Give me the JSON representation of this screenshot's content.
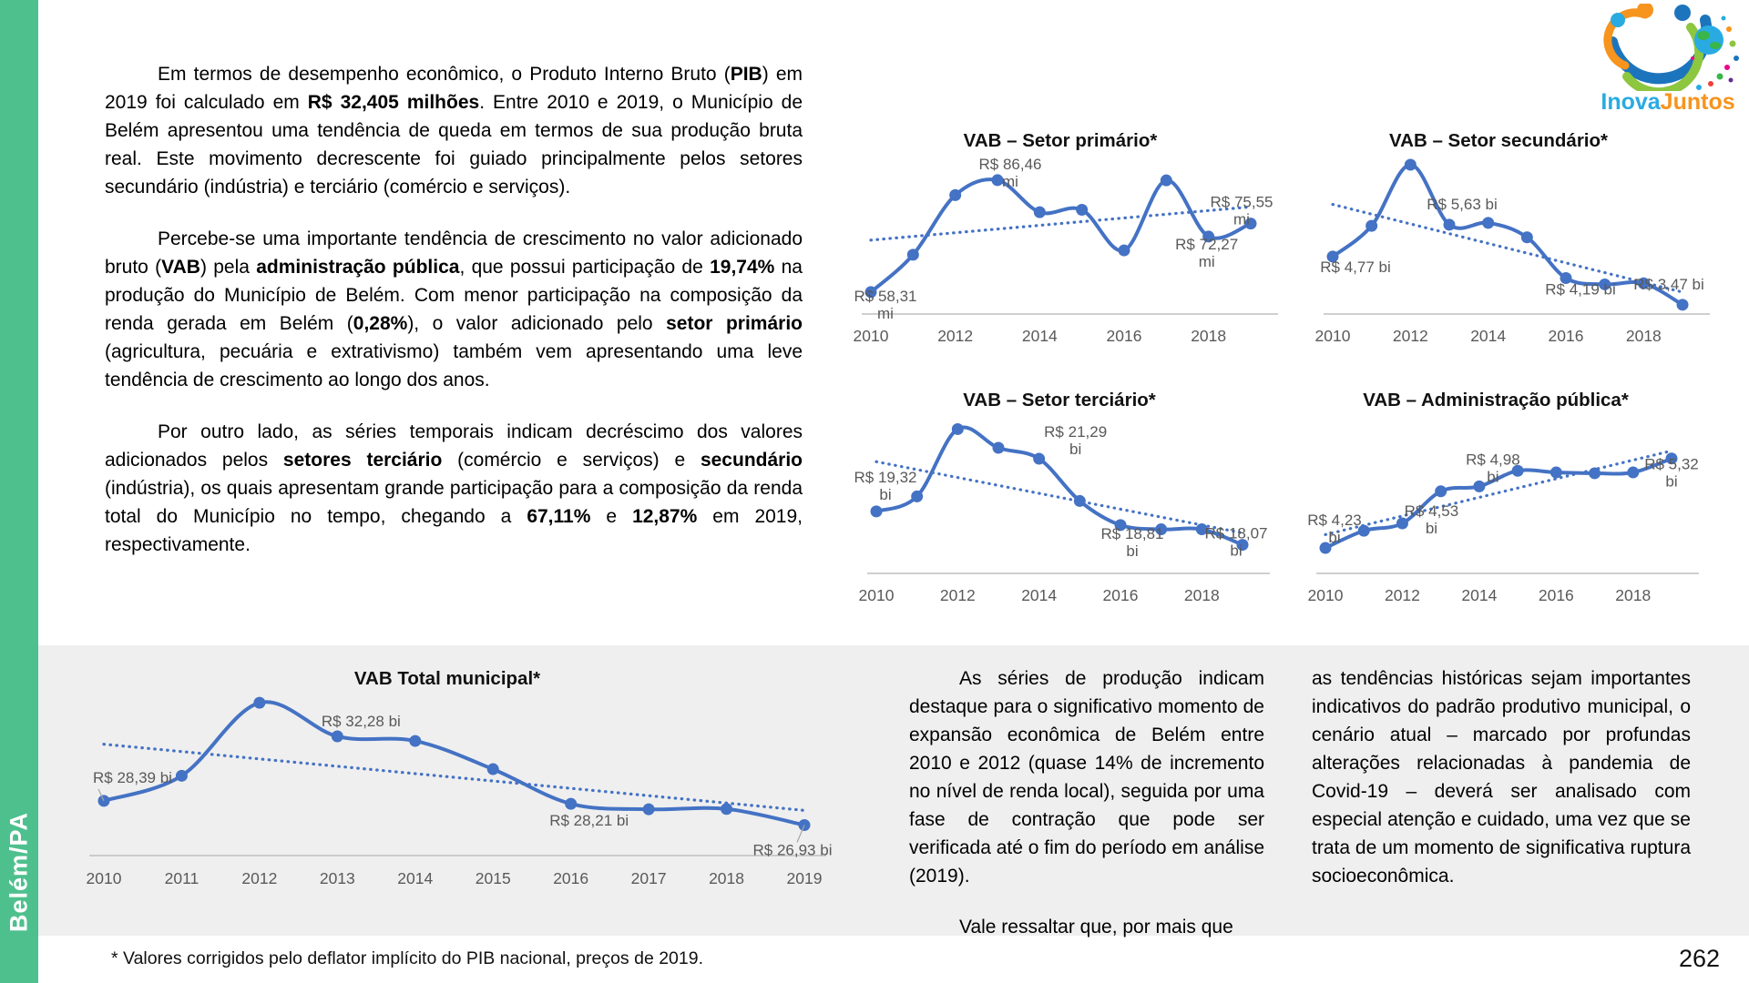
{
  "page": {
    "footnote": "* Valores corrigidos pelo deflator implícito do PIB nacional, preços de 2019.",
    "number": "262"
  },
  "sidebar": {
    "label": "Belém/PA",
    "color": "#4EC08E"
  },
  "logo": {
    "inova": "Inova",
    "juntos": "Juntos",
    "inova_color": "#29ABE2",
    "juntos_color": "#F7941D"
  },
  "article": {
    "paragraphs": [
      {
        "segments": [
          {
            "t": "Em termos de desempenho econômico, o Produto Interno Bruto ("
          },
          {
            "t": "PIB",
            "b": true
          },
          {
            "t": ") em 2019 foi calculado em "
          },
          {
            "t": "R$ 32,405 milhões",
            "b": true
          },
          {
            "t": ". Entre 2010 e 2019, o Município de Belém apresentou uma tendência de queda em termos de sua produção bruta real. Este movimento decrescente foi guiado principalmente pelos setores secundário (indústria) e terciário (comércio e serviços)."
          }
        ]
      },
      {
        "segments": [
          {
            "t": "Percebe-se uma importante tendência de crescimento no valor adicionado bruto ("
          },
          {
            "t": "VAB",
            "b": true
          },
          {
            "t": ") pela "
          },
          {
            "t": "administração pública",
            "b": true
          },
          {
            "t": ", que possui participação de "
          },
          {
            "t": "19,74%",
            "b": true
          },
          {
            "t": " na produção do Município de Belém. Com menor participação na composição da renda gerada em Belém ("
          },
          {
            "t": "0,28%",
            "b": true
          },
          {
            "t": "), o valor adicionado pelo "
          },
          {
            "t": "setor primário",
            "b": true
          },
          {
            "t": " (agricultura, pecuária e extrativismo) também vem apresentando uma leve tendência de crescimento ao longo dos anos."
          }
        ]
      },
      {
        "segments": [
          {
            "t": "Por outro lado, as séries temporais indicam decréscimo dos valores adicionados pelos "
          },
          {
            "t": "setores terciário",
            "b": true
          },
          {
            "t": " (comércio e serviços) e "
          },
          {
            "t": "secundário",
            "b": true
          },
          {
            "t": " (indústria), os quais apresentam grande participação para a composição da renda total do Município no tempo, chegando a "
          },
          {
            "t": "67,11%",
            "b": true
          },
          {
            "t": " e "
          },
          {
            "t": "12,87%",
            "b": true
          },
          {
            "t": " em 2019, respectivamente."
          }
        ]
      }
    ]
  },
  "bottom_columns": [
    {
      "paragraphs": [
        {
          "segments": [
            {
              "t": "As séries de produção indicam destaque para o significativo momento de expansão econômica de Belém entre 2010 e 2012 (quase 14% de incremento no nível de renda local), seguida por uma fase de contração que pode ser verificada até o fim do período em análise (2019)."
            }
          ]
        },
        {
          "segments": [
            {
              "t": "Vale ressaltar que, por mais que"
            }
          ]
        }
      ]
    },
    {
      "paragraphs": [
        {
          "indent": false,
          "segments": [
            {
              "t": "as tendências históricas sejam importantes indicativos do padrão produtivo municipal, o cenário atual – marcado por profundas alterações relacionadas à pandemia de Covid-19 – deverá ser analisado com especial atenção e cuidado, uma vez que se trata de um momento de significativa ruptura socioeconômica."
            }
          ]
        }
      ]
    }
  ],
  "chart_data": [
    {
      "id": "vab-primario",
      "type": "line",
      "title": "VAB – Setor primário*",
      "unit": "mi",
      "x": [
        2010,
        2011,
        2012,
        2013,
        2014,
        2015,
        2016,
        2017,
        2018,
        2019
      ],
      "values": [
        58.31,
        67.7,
        82.7,
        86.46,
        78.4,
        79.0,
        68.8,
        86.4,
        72.27,
        75.55
      ],
      "labeled_points": [
        {
          "index": 0,
          "lines": [
            "R$ 58,31",
            "mi"
          ]
        },
        {
          "index": 3,
          "lines": [
            "R$ 86,46",
            "mi"
          ]
        },
        {
          "index": 8,
          "lines": [
            "R$ 72,27",
            "mi"
          ]
        },
        {
          "index": 9,
          "lines": [
            "R$ 75,55",
            "mi"
          ]
        }
      ],
      "x_ticks_shown": [
        "2010",
        "2012",
        "2014",
        "2016",
        "2018"
      ],
      "ylim": [
        52.8,
        92.85
      ],
      "trendline": true,
      "line_color": "#4472C4"
    },
    {
      "id": "vab-secundario",
      "type": "line",
      "title": "VAB – Setor secundário*",
      "unit": "bi",
      "x": [
        2010,
        2011,
        2012,
        2013,
        2014,
        2015,
        2016,
        2017,
        2018,
        2019
      ],
      "values": [
        4.77,
        5.6,
        7.25,
        5.63,
        5.68,
        5.29,
        4.19,
        4.02,
        4.05,
        3.47
      ],
      "labeled_points": [
        {
          "index": 0,
          "lines": [
            "R$ 4,77 bi"
          ]
        },
        {
          "index": 3,
          "lines": [
            "R$ 5,63 bi"
          ]
        },
        {
          "index": 6,
          "lines": [
            "R$ 4,19 bi"
          ]
        },
        {
          "index": 9,
          "lines": [
            "R$ 3,47 bi"
          ]
        }
      ],
      "x_ticks_shown": [
        "2010",
        "2012",
        "2014",
        "2016",
        "2018"
      ],
      "ylim": [
        3.22,
        7.52
      ],
      "trendline": true,
      "line_color": "#4472C4"
    },
    {
      "id": "vab-terciario",
      "type": "line",
      "title": "VAB – Setor terciário*",
      "unit": "bi",
      "x": [
        2010,
        2011,
        2012,
        2013,
        2014,
        2015,
        2016,
        2017,
        2018,
        2019
      ],
      "values": [
        19.32,
        19.88,
        22.4,
        21.7,
        21.29,
        19.71,
        18.81,
        18.65,
        18.65,
        18.07
      ],
      "labeled_points": [
        {
          "index": 0,
          "lines": [
            "R$ 19,32",
            "bi"
          ]
        },
        {
          "index": 4,
          "lines": [
            "R$ 21,29",
            "bi"
          ]
        },
        {
          "index": 6,
          "lines": [
            "R$ 18,81",
            "bi"
          ]
        },
        {
          "index": 9,
          "lines": [
            "R$ 18,07",
            "bi"
          ]
        }
      ],
      "x_ticks_shown": [
        "2010",
        "2012",
        "2014",
        "2016",
        "2018"
      ],
      "ylim": [
        17.0,
        22.96
      ],
      "trendline": true,
      "line_color": "#4472C4"
    },
    {
      "id": "vab-admin",
      "type": "line",
      "title": "VAB – Administração pública*",
      "unit": "bi",
      "x": [
        2010,
        2011,
        2012,
        2013,
        2014,
        2015,
        2016,
        2017,
        2018,
        2019
      ],
      "values": [
        4.23,
        4.44,
        4.53,
        4.92,
        4.98,
        5.17,
        5.15,
        5.14,
        5.15,
        5.32
      ],
      "labeled_points": [
        {
          "index": 0,
          "lines": [
            "R$ 4,23",
            "bi"
          ]
        },
        {
          "index": 2,
          "lines": [
            "R$ 4,53",
            "bi"
          ]
        },
        {
          "index": 4,
          "lines": [
            "R$ 4,98",
            "bi"
          ]
        },
        {
          "index": 9,
          "lines": [
            "R$ 5,32",
            "bi"
          ]
        }
      ],
      "x_ticks_shown": [
        "2010",
        "2012",
        "2014",
        "2016",
        "2018"
      ],
      "ylim": [
        3.92,
        5.86
      ],
      "trendline": true,
      "line_color": "#4472C4"
    },
    {
      "id": "vab-total",
      "type": "line",
      "title": "VAB Total municipal*",
      "unit": "bi",
      "x": [
        2010,
        2011,
        2012,
        2013,
        2014,
        2015,
        2016,
        2017,
        2018,
        2019
      ],
      "values": [
        28.39,
        29.9,
        34.3,
        32.28,
        32.0,
        30.3,
        28.21,
        27.88,
        27.9,
        26.93
      ],
      "labeled_points": [
        {
          "index": 0,
          "lines": [
            "R$ 28,39 bi"
          ]
        },
        {
          "index": 3,
          "lines": [
            "R$ 32,28 bi"
          ]
        },
        {
          "index": 6,
          "lines": [
            "R$ 28,21 bi"
          ]
        },
        {
          "index": 9,
          "lines": [
            "R$ 26,93 bi"
          ]
        }
      ],
      "x_ticks_shown": [
        "2010",
        "2011",
        "2012",
        "2013",
        "2014",
        "2015",
        "2016",
        "2017",
        "2018",
        "2019"
      ],
      "ylim": [
        25.09,
        35.79
      ],
      "trendline": true,
      "line_color": "#4472C4"
    }
  ]
}
